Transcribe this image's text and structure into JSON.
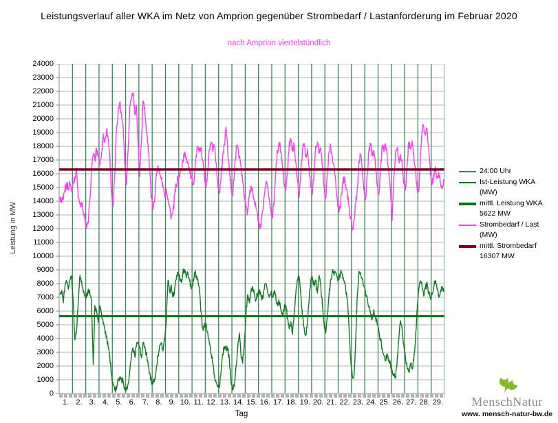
{
  "title": "Leistungsverlauf aller WKA im Netz von Amprion gegenüber  Strombedarf / Lastanforderung im Februar 2020",
  "subtitle": "nach Amprion viertelstündlich",
  "axes": {
    "y_title": "Leistung in MW",
    "x_title": "Tag",
    "x_tick_labels": [
      "1.",
      "2.",
      "3.",
      "4.",
      "5.",
      "6.",
      "7.",
      "8.",
      "9.",
      "10.",
      "11.",
      "12.",
      "13.",
      "14.",
      "15.",
      "16.",
      "17.",
      "18.",
      "19.",
      "20.",
      "21.",
      "22.",
      "23.",
      "24.",
      "25.",
      "26.",
      "27.",
      "28.",
      "29."
    ]
  },
  "legend": {
    "items": [
      {
        "label_lines": [
          "24:00 Uhr"
        ],
        "color": "#2e8b57",
        "thickness": 2
      },
      {
        "label_lines": [
          "Ist-Leistung WKA",
          "(MW)"
        ],
        "color": "#0d7a1f",
        "thickness": 2
      },
      {
        "label_lines": [
          "mittl. Leistung WKA",
          "5622 MW"
        ],
        "color": "#007716",
        "thickness": 4
      },
      {
        "label_lines": [
          "Strombedarf / Last",
          "(MW)"
        ],
        "color": "#fb3cf0",
        "thickness": 2
      },
      {
        "label_lines": [
          "mittl. Strombedarf",
          "16307 MW"
        ],
        "color": "#7e0021",
        "thickness": 4
      }
    ]
  },
  "branding": {
    "name": "MenschNatur",
    "url": "www. mensch-natur-bw.de",
    "leaf_color": "#84b928"
  },
  "colors": {
    "grid": "#b3b3b3",
    "axis": "#8a8a8a",
    "tick_band": "#b2b2b2",
    "subtitle": "#fb3cf0"
  },
  "chart_data": {
    "type": "line",
    "title": "Leistungsverlauf aller WKA im Netz von Amprion gegenüber Strombedarf / Lastanforderung im Februar 2020",
    "subtitle": "nach Amprion viertelstündlich",
    "xlabel": "Tag",
    "ylabel": "Leistung in MW",
    "x_range_days": [
      1,
      29
    ],
    "ylim": [
      0,
      24000
    ],
    "y_tick_step": 1000,
    "samples_per_day": 8,
    "grid": true,
    "legend_position": "right",
    "day_lines": {
      "name": "24:00 Uhr",
      "color": "#2e8b57",
      "count": 29
    },
    "reference_lines": [
      {
        "name": "mittl. Leistung WKA",
        "value": 5622,
        "color": "#007716",
        "width": 3
      },
      {
        "name": "mittl. Strombedarf",
        "value": 16307,
        "color": "#7e0021",
        "width": 3.5
      }
    ],
    "series": [
      {
        "name": "Strombedarf / Last (MW)",
        "color": "#fb3cf0",
        "width": 1.4,
        "noise": 320,
        "values": [
          14300,
          13900,
          14100,
          14800,
          15200,
          15000,
          15300,
          14800,
          15300,
          15800,
          16300,
          14200,
          13800,
          13900,
          13200,
          12700,
          12000,
          12400,
          14200,
          16200,
          17300,
          17000,
          17800,
          17200,
          16600,
          17500,
          18900,
          18300,
          19200,
          18600,
          17400,
          14600,
          13600,
          16000,
          19300,
          20500,
          21200,
          20300,
          19600,
          16800,
          15200,
          17800,
          20900,
          21500,
          21900,
          20400,
          21000,
          18200,
          15800,
          18300,
          21300,
          20800,
          19000,
          18200,
          16400,
          14200,
          13400,
          14100,
          15900,
          16600,
          16000,
          15600,
          15000,
          14400,
          14900,
          14200,
          13600,
          12800,
          13100,
          14400,
          15200,
          15600,
          15800,
          16300,
          17000,
          17400,
          17200,
          16800,
          16300,
          15700,
          15200,
          16000,
          17300,
          18000,
          17600,
          17900,
          16900,
          15800,
          15000,
          16200,
          17800,
          18300,
          17600,
          18000,
          16800,
          15200,
          14600,
          15800,
          17400,
          18100,
          19400,
          17600,
          16300,
          15000,
          14400,
          16100,
          17700,
          18000,
          17300,
          16500,
          15400,
          14300,
          13600,
          13200,
          14400,
          15100,
          14700,
          14100,
          13500,
          12900,
          12400,
          12100,
          13200,
          14400,
          15300,
          15000,
          14200,
          13300,
          12800,
          14200,
          16400,
          17700,
          18300,
          17600,
          16500,
          15200,
          14800,
          16300,
          18100,
          18400,
          17700,
          18000,
          16900,
          15400,
          14300,
          16000,
          17800,
          18200,
          17400,
          17800,
          16500,
          15000,
          14500,
          16200,
          18000,
          18300,
          17500,
          17900,
          16600,
          15100,
          14200,
          15900,
          17600,
          18000,
          17200,
          16600,
          15500,
          14100,
          13200,
          13900,
          15100,
          15800,
          15200,
          14500,
          13700,
          12800,
          11900,
          12600,
          13800,
          14900,
          16900,
          17400,
          16200,
          14800,
          14100,
          16000,
          17700,
          18100,
          17300,
          17700,
          16500,
          15100,
          14500,
          16300,
          18000,
          17600,
          18200,
          17300,
          16100,
          14700,
          12600,
          15800,
          17500,
          17900,
          17000,
          17400,
          16800,
          15300,
          14800,
          16600,
          18300,
          17800,
          18400,
          17500,
          16300,
          14900,
          14700,
          16900,
          19100,
          19500,
          18800,
          19300,
          17900,
          16000,
          15200,
          15900,
          16500,
          15800,
          16100,
          15400,
          14900,
          15600
        ]
      },
      {
        "name": "Ist-Leistung WKA (MW)",
        "color": "#0d7a1f",
        "width": 1.4,
        "noise": 240,
        "values": [
          7200,
          7500,
          6600,
          7800,
          8100,
          7600,
          8300,
          8500,
          6500,
          3900,
          4600,
          6800,
          8600,
          8200,
          7400,
          7100,
          7000,
          7600,
          7200,
          6600,
          2100,
          6400,
          6000,
          5200,
          6400,
          5800,
          5100,
          4600,
          4200,
          3400,
          2600,
          1400,
          600,
          250,
          300,
          1100,
          1200,
          1100,
          900,
          300,
          250,
          700,
          1600,
          2800,
          3300,
          2700,
          3400,
          3700,
          3300,
          2600,
          3700,
          3400,
          2900,
          2200,
          1500,
          900,
          700,
          1100,
          1900,
          2700,
          3500,
          3700,
          3100,
          3900,
          5200,
          8200,
          7400,
          7900,
          7000,
          7600,
          8300,
          8800,
          8600,
          8100,
          8800,
          9000,
          8400,
          8800,
          8200,
          7600,
          7900,
          8800,
          8600,
          8300,
          7400,
          5900,
          4700,
          4900,
          5100,
          4400,
          3600,
          2900,
          2100,
          1300,
          800,
          500,
          450,
          1600,
          2900,
          3400,
          3200,
          3300,
          2400,
          800,
          400,
          600,
          2000,
          3300,
          4400,
          2700,
          2200,
          3700,
          5800,
          7200,
          6600,
          7500,
          7800,
          7300,
          6800,
          7200,
          7400,
          7100,
          6900,
          7600,
          8000,
          7400,
          7000,
          7300,
          7100,
          7500,
          6900,
          6400,
          6700,
          6100,
          5600,
          6200,
          6400,
          5500,
          4700,
          5200,
          4300,
          5900,
          7300,
          8300,
          8500,
          7200,
          5600,
          4800,
          4200,
          5300,
          6800,
          8200,
          8400,
          7800,
          8200,
          7300,
          8600,
          7900,
          6400,
          5100,
          4400,
          5600,
          7200,
          8300,
          8900,
          8600,
          8800,
          8500,
          8300,
          8900,
          8700,
          8200,
          7600,
          6800,
          4900,
          2600,
          1300,
          1200,
          3800,
          7200,
          8900,
          8800,
          8300,
          7800,
          7400,
          6900,
          6300,
          5800,
          5400,
          6100,
          5600,
          5000,
          4500,
          3900,
          3300,
          2800,
          2400,
          2900,
          2500,
          2100,
          1700,
          1300,
          1100,
          2300,
          3900,
          5300,
          4700,
          3500,
          2600,
          1900,
          1600,
          2200,
          1800,
          2400,
          3900,
          6100,
          7600,
          8200,
          7800,
          7100,
          7600,
          8100,
          7300,
          6900,
          7200,
          7700,
          8200,
          7600,
          7000,
          7400,
          7800,
          7400
        ]
      }
    ]
  }
}
